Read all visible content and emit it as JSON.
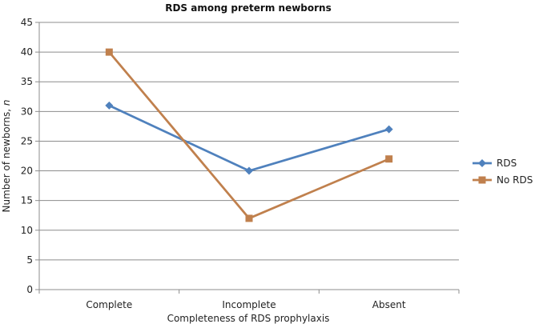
{
  "chart_data": {
    "type": "line",
    "title": "RDS among preterm newborns",
    "xlabel": "Completeness of RDS prophylaxis",
    "ylabel_main": "Number of newborns, ",
    "ylabel_var": "n",
    "categories": [
      "Complete",
      "Incomplete",
      "Absent"
    ],
    "ylim": [
      0,
      45
    ],
    "yticks": [
      0,
      5,
      10,
      15,
      20,
      25,
      30,
      35,
      40,
      45
    ],
    "grid": true,
    "legend_position": "right",
    "series": [
      {
        "name": "RDS",
        "values": [
          31,
          20,
          27
        ],
        "color": "#4f81bd",
        "marker": "diamond"
      },
      {
        "name": "No RDS",
        "values": [
          40,
          12,
          22
        ],
        "color": "#c0804d",
        "marker": "square"
      }
    ]
  }
}
